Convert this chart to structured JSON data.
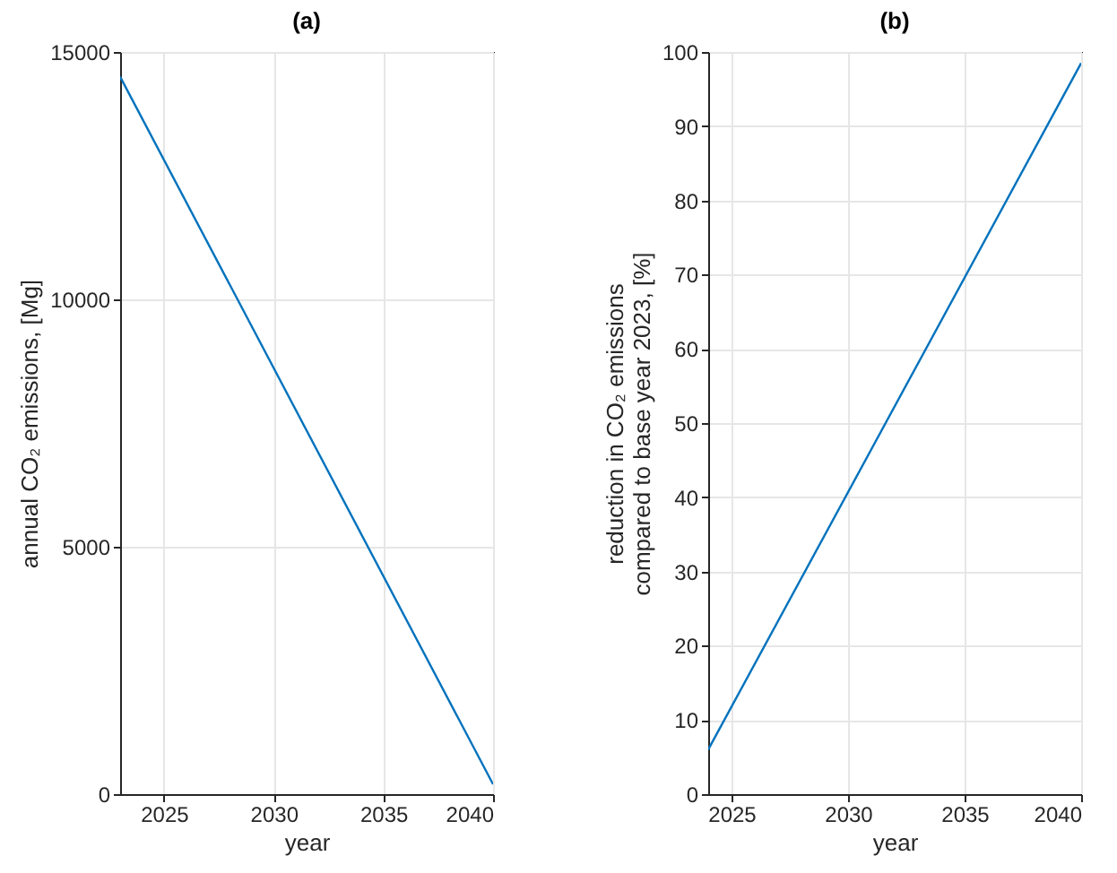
{
  "chart_data": [
    {
      "type": "line",
      "title": "(a)",
      "xlabel": "year",
      "ylabel": "annual CO₂ emissions, [Mg]",
      "x": [
        2023,
        2040
      ],
      "values": [
        14500,
        200
      ],
      "color": "#0072bd",
      "xlim": [
        2023,
        2040
      ],
      "xticks": [
        2025,
        2030,
        2035,
        2040
      ],
      "ylim": [
        0,
        15000
      ],
      "yticks": [
        0,
        5000,
        10000,
        15000
      ],
      "grid": true
    },
    {
      "type": "line",
      "title": "(b)",
      "xlabel": "year",
      "ylabel": "reduction in CO₂ emissions\ncompared to base year 2023, [%]",
      "x": [
        2024,
        2040
      ],
      "values": [
        6,
        98.5
      ],
      "color": "#0072bd",
      "xlim": [
        2024,
        2040
      ],
      "xticks": [
        2025,
        2030,
        2035,
        2040
      ],
      "ylim": [
        0,
        100
      ],
      "yticks": [
        0,
        10,
        20,
        30,
        40,
        50,
        60,
        70,
        80,
        90,
        100
      ],
      "grid": true
    }
  ]
}
